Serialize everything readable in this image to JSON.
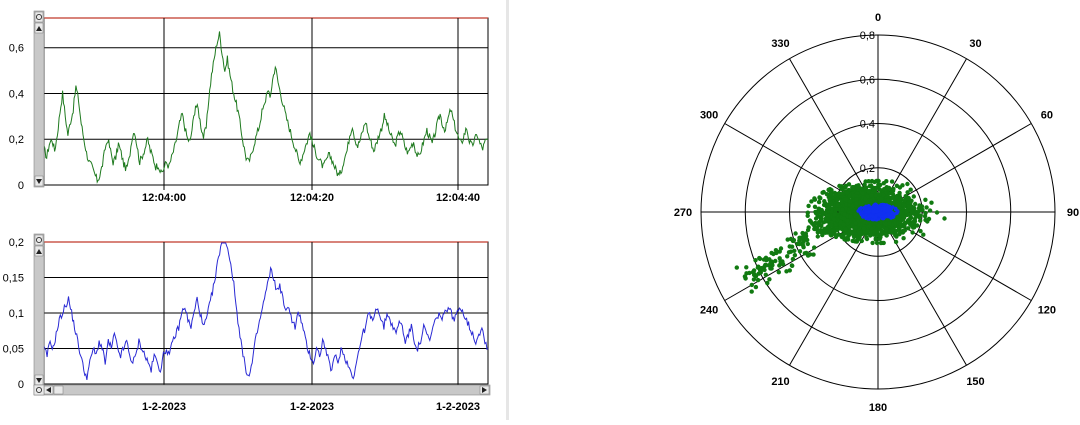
{
  "colors": {
    "grid": "#000000",
    "threshold": "#c0392b",
    "series_top": "#1f7a1f",
    "series_bottom": "#2a2ad4",
    "scatter_outer": "#117a11",
    "scatter_core": "#1030f0",
    "scrollbar": "#c8c8c8"
  },
  "icons": [
    "gear-icon",
    "arrow-up-icon",
    "arrow-down-icon",
    "arrow-left-icon",
    "arrow-right-icon"
  ],
  "chart_data": [
    {
      "type": "line",
      "ylim": [
        0,
        0.73
      ],
      "yticks": [
        "0",
        "0,2",
        "0,4",
        "0,6"
      ],
      "ytick_values": [
        0,
        0.2,
        0.4,
        0.6
      ],
      "xticks": [
        "12:04:00",
        "12:04:20",
        "12:04:40"
      ],
      "threshold": 0.73,
      "series": [
        {
          "values": [
            0.16,
            0.12,
            0.18,
            0.2,
            0.15,
            0.22,
            0.32,
            0.4,
            0.3,
            0.22,
            0.28,
            0.33,
            0.43,
            0.37,
            0.27,
            0.2,
            0.14,
            0.1,
            0.08,
            0.05,
            0.02,
            0.04,
            0.09,
            0.16,
            0.2,
            0.15,
            0.1,
            0.12,
            0.18,
            0.14,
            0.09,
            0.07,
            0.11,
            0.2,
            0.24,
            0.17,
            0.1,
            0.13,
            0.16,
            0.2,
            0.15,
            0.12,
            0.08,
            0.09,
            0.05,
            0.07,
            0.1,
            0.08,
            0.12,
            0.16,
            0.21,
            0.27,
            0.31,
            0.25,
            0.2,
            0.19,
            0.27,
            0.35,
            0.33,
            0.26,
            0.21,
            0.25,
            0.38,
            0.48,
            0.55,
            0.62,
            0.66,
            0.58,
            0.5,
            0.55,
            0.48,
            0.42,
            0.37,
            0.32,
            0.25,
            0.18,
            0.12,
            0.1,
            0.13,
            0.18,
            0.22,
            0.26,
            0.32,
            0.35,
            0.42,
            0.38,
            0.46,
            0.52,
            0.45,
            0.4,
            0.35,
            0.3,
            0.26,
            0.22,
            0.18,
            0.14,
            0.1,
            0.12,
            0.16,
            0.19,
            0.23,
            0.18,
            0.15,
            0.12,
            0.1,
            0.08,
            0.1,
            0.13,
            0.12,
            0.09,
            0.06,
            0.04,
            0.07,
            0.12,
            0.15,
            0.22,
            0.26,
            0.2,
            0.17,
            0.2,
            0.24,
            0.28,
            0.22,
            0.19,
            0.15,
            0.18,
            0.22,
            0.25,
            0.3,
            0.27,
            0.23,
            0.2,
            0.17,
            0.21,
            0.24,
            0.2,
            0.16,
            0.14,
            0.17,
            0.19,
            0.14,
            0.12,
            0.16,
            0.2,
            0.24,
            0.21,
            0.18,
            0.22,
            0.27,
            0.31,
            0.26,
            0.24,
            0.29,
            0.33,
            0.28,
            0.24,
            0.2,
            0.18,
            0.22,
            0.25,
            0.19,
            0.17,
            0.2,
            0.22,
            0.18,
            0.16,
            0.19,
            0.2
          ],
          "smoothing": 2
        }
      ]
    },
    {
      "type": "line",
      "ylim": [
        0,
        0.2
      ],
      "yticks": [
        "0",
        "0,05",
        "0,1",
        "0,15",
        "0,2"
      ],
      "ytick_values": [
        0,
        0.05,
        0.1,
        0.15,
        0.2
      ],
      "xticks": [
        "1-2-2023",
        "1-2-2023",
        "1-2-2023"
      ],
      "threshold": 0.2,
      "series": [
        {
          "values": [
            0.05,
            0.04,
            0.06,
            0.05,
            0.07,
            0.09,
            0.1,
            0.11,
            0.12,
            0.1,
            0.08,
            0.06,
            0.04,
            0.02,
            0.01,
            0.03,
            0.05,
            0.04,
            0.06,
            0.05,
            0.03,
            0.06,
            0.05,
            0.07,
            0.05,
            0.04,
            0.05,
            0.06,
            0.04,
            0.03,
            0.04,
            0.06,
            0.05,
            0.04,
            0.03,
            0.02,
            0.04,
            0.03,
            0.02,
            0.04,
            0.05,
            0.04,
            0.06,
            0.07,
            0.08,
            0.1,
            0.11,
            0.09,
            0.08,
            0.1,
            0.12,
            0.1,
            0.08,
            0.09,
            0.11,
            0.13,
            0.15,
            0.18,
            0.2,
            0.21,
            0.19,
            0.17,
            0.14,
            0.1,
            0.07,
            0.04,
            0.02,
            0.01,
            0.03,
            0.06,
            0.08,
            0.1,
            0.12,
            0.14,
            0.16,
            0.15,
            0.13,
            0.14,
            0.12,
            0.1,
            0.11,
            0.09,
            0.08,
            0.1,
            0.09,
            0.07,
            0.05,
            0.04,
            0.03,
            0.05,
            0.04,
            0.06,
            0.05,
            0.03,
            0.02,
            0.04,
            0.03,
            0.05,
            0.04,
            0.03,
            0.02,
            0.01,
            0.03,
            0.05,
            0.07,
            0.08,
            0.1,
            0.09,
            0.1,
            0.11,
            0.09,
            0.08,
            0.1,
            0.09,
            0.08,
            0.07,
            0.09,
            0.08,
            0.06,
            0.07,
            0.08,
            0.06,
            0.05,
            0.06,
            0.08,
            0.07,
            0.06,
            0.08,
            0.09,
            0.1,
            0.09,
            0.1,
            0.11,
            0.1,
            0.09,
            0.1,
            0.11,
            0.1,
            0.09,
            0.08,
            0.07,
            0.06,
            0.07,
            0.08,
            0.06,
            0.05
          ]
        }
      ]
    },
    {
      "type": "scatter",
      "polar": true,
      "rlim": [
        0,
        0.8
      ],
      "rticks": [
        "0,2",
        "0,4",
        "0,6",
        "0,8"
      ],
      "rtick_values": [
        0.2,
        0.4,
        0.6,
        0.8
      ],
      "angle_labels": [
        "0",
        "30",
        "60",
        "90",
        "120",
        "150",
        "180",
        "210",
        "240",
        "270",
        "300",
        "330"
      ],
      "clusters": [
        {
          "name": "",
          "color_key": "scatter_outer",
          "center_x": -0.05,
          "center_y": 0.0,
          "spread_x": 0.18,
          "spread_y": 0.09,
          "count": 2200,
          "tail": true
        },
        {
          "name": "",
          "color_key": "scatter_core",
          "center_x": 0.0,
          "center_y": 0.0,
          "spread_x": 0.06,
          "spread_y": 0.025,
          "count": 500,
          "tail": false
        }
      ]
    }
  ]
}
